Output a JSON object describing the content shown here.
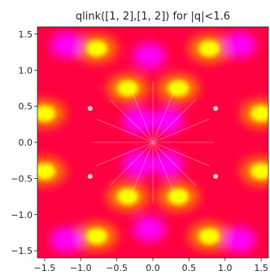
{
  "chart_data": {
    "type": "heatmap",
    "title": "qlink([1, 2],[1, 2]) for |q|<1.6",
    "xlabel": "",
    "ylabel": "",
    "xlim": [
      -1.6,
      1.6
    ],
    "ylim": [
      -1.6,
      1.6
    ],
    "grid": false,
    "x_ticks": [
      -1.5,
      -1.0,
      -0.5,
      0.0,
      0.5,
      1.0,
      1.5
    ],
    "x_tick_labels": [
      "−1.5",
      "−1.0",
      "−0.5",
      "0.0",
      "0.5",
      "1.0",
      "1.5"
    ],
    "y_ticks": [
      1.5,
      1.0,
      0.5,
      0.0,
      -0.5,
      -1.0,
      -1.5
    ],
    "y_tick_labels": [
      "1.5",
      "1.0",
      "0.5",
      "0.0",
      "−0.5",
      "−1.0",
      "−1.5"
    ],
    "colormap": [
      "#ff00ff",
      "#ff0040",
      "#ff8000",
      "#ffff00"
    ],
    "features": {
      "center_point": [
        0.0,
        0.0
      ],
      "node_points": [
        [
          -0.87,
          0.47
        ],
        [
          0.87,
          0.47
        ],
        [
          -0.87,
          -0.47
        ],
        [
          0.87,
          -0.47
        ]
      ],
      "magenta_regions": [
        [
          -1.2,
          1.35
        ],
        [
          1.2,
          1.35
        ],
        [
          -1.2,
          -1.35
        ],
        [
          1.2,
          -1.35
        ],
        [
          -0.05,
          1.2
        ],
        [
          -0.05,
          -1.2
        ],
        [
          -0.2,
          0.3
        ],
        [
          0.2,
          0.3
        ],
        [
          -0.2,
          -0.3
        ],
        [
          0.2,
          -0.3
        ]
      ],
      "yellow_regions": [
        [
          -0.78,
          1.3
        ],
        [
          0.78,
          1.3
        ],
        [
          -0.78,
          -1.3
        ],
        [
          0.78,
          -1.3
        ],
        [
          -0.35,
          0.75
        ],
        [
          0.35,
          0.75
        ],
        [
          -0.35,
          -0.75
        ],
        [
          0.35,
          -0.75
        ],
        [
          -1.5,
          0.4
        ],
        [
          1.5,
          0.4
        ],
        [
          -1.5,
          -0.4
        ],
        [
          1.5,
          -0.4
        ]
      ]
    }
  }
}
